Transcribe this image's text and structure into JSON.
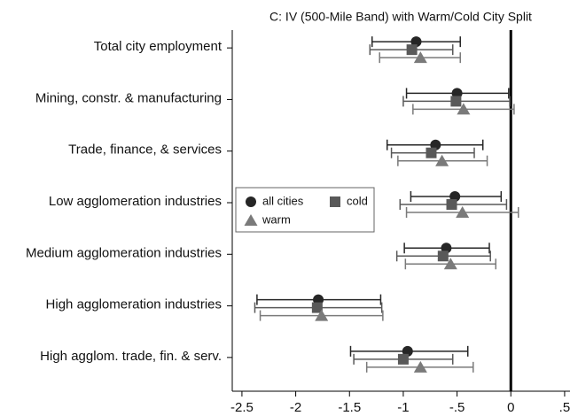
{
  "chart_data": {
    "type": "dot-whisker",
    "title": "C: IV (500-Mile Band) with Warm/Cold City Split",
    "categories": [
      "Total city employment",
      "Mining, constr. & manufacturing",
      "Trade, finance, & services",
      "Low agglomeration industries",
      "Medium agglomeration industries",
      "High agglomeration industries",
      "High agglom. trade, fin. & serv."
    ],
    "series": [
      {
        "name": "all cities",
        "color": "#262626",
        "marker": "circle",
        "values": [
          -0.88,
          -0.5,
          -0.7,
          -0.52,
          -0.6,
          -1.79,
          -0.96
        ],
        "lower": [
          -1.29,
          -0.97,
          -1.15,
          -0.93,
          -0.99,
          -2.36,
          -1.49
        ],
        "upper": [
          -0.47,
          -0.02,
          -0.26,
          -0.09,
          -0.2,
          -1.21,
          -0.4
        ]
      },
      {
        "name": "cold",
        "color": "#595959",
        "marker": "square",
        "values": [
          -0.92,
          -0.51,
          -0.74,
          -0.55,
          -0.63,
          -1.8,
          -1.0
        ],
        "lower": [
          -1.31,
          -1.0,
          -1.11,
          -1.03,
          -1.06,
          -2.38,
          -1.46
        ],
        "upper": [
          -0.54,
          -0.01,
          -0.34,
          -0.04,
          -0.19,
          -1.2,
          -0.54
        ]
      },
      {
        "name": "warm",
        "color": "#7a7a7a",
        "marker": "triangle",
        "values": [
          -0.84,
          -0.44,
          -0.64,
          -0.45,
          -0.56,
          -1.76,
          -0.84
        ],
        "lower": [
          -1.22,
          -0.91,
          -1.05,
          -0.97,
          -0.98,
          -2.33,
          -1.34
        ],
        "upper": [
          -0.47,
          0.03,
          -0.22,
          0.07,
          -0.14,
          -1.19,
          -0.35
        ]
      }
    ],
    "xlim": [
      -2.59,
      0.55
    ],
    "xticks": [
      -2.5,
      -2,
      -1.5,
      -1,
      {
        "value": -0.5,
        "label": "-.5"
      },
      0,
      {
        "value": 0.5,
        "label": ".5"
      }
    ],
    "reference_line": 0,
    "legend": "left"
  }
}
